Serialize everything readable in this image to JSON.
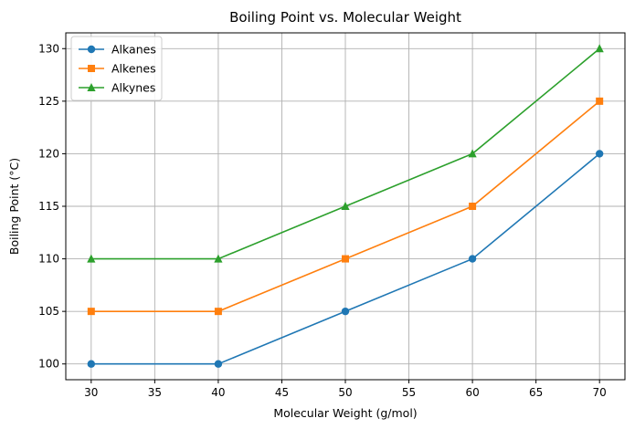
{
  "chart_data": {
    "type": "line",
    "title": "Boiling Point vs. Molecular Weight",
    "xlabel": "Molecular Weight (g/mol)",
    "ylabel": "Boiling Point (°C)",
    "x": [
      30,
      40,
      50,
      60,
      70
    ],
    "xlim": [
      28,
      72
    ],
    "ylim": [
      98.5,
      131.5
    ],
    "xticks": [
      30,
      35,
      40,
      45,
      50,
      55,
      60,
      65,
      70
    ],
    "yticks": [
      100,
      105,
      110,
      115,
      120,
      125,
      130
    ],
    "grid": true,
    "legend_position": "top-left",
    "series": [
      {
        "name": "Alkanes",
        "values": [
          100,
          100,
          105,
          110,
          120
        ],
        "color": "#1f77b4",
        "marker": "circle"
      },
      {
        "name": "Alkenes",
        "values": [
          105,
          105,
          110,
          115,
          125
        ],
        "color": "#ff7f0e",
        "marker": "square"
      },
      {
        "name": "Alkynes",
        "values": [
          110,
          110,
          115,
          120,
          130
        ],
        "color": "#2ca02c",
        "marker": "triangle"
      }
    ]
  }
}
